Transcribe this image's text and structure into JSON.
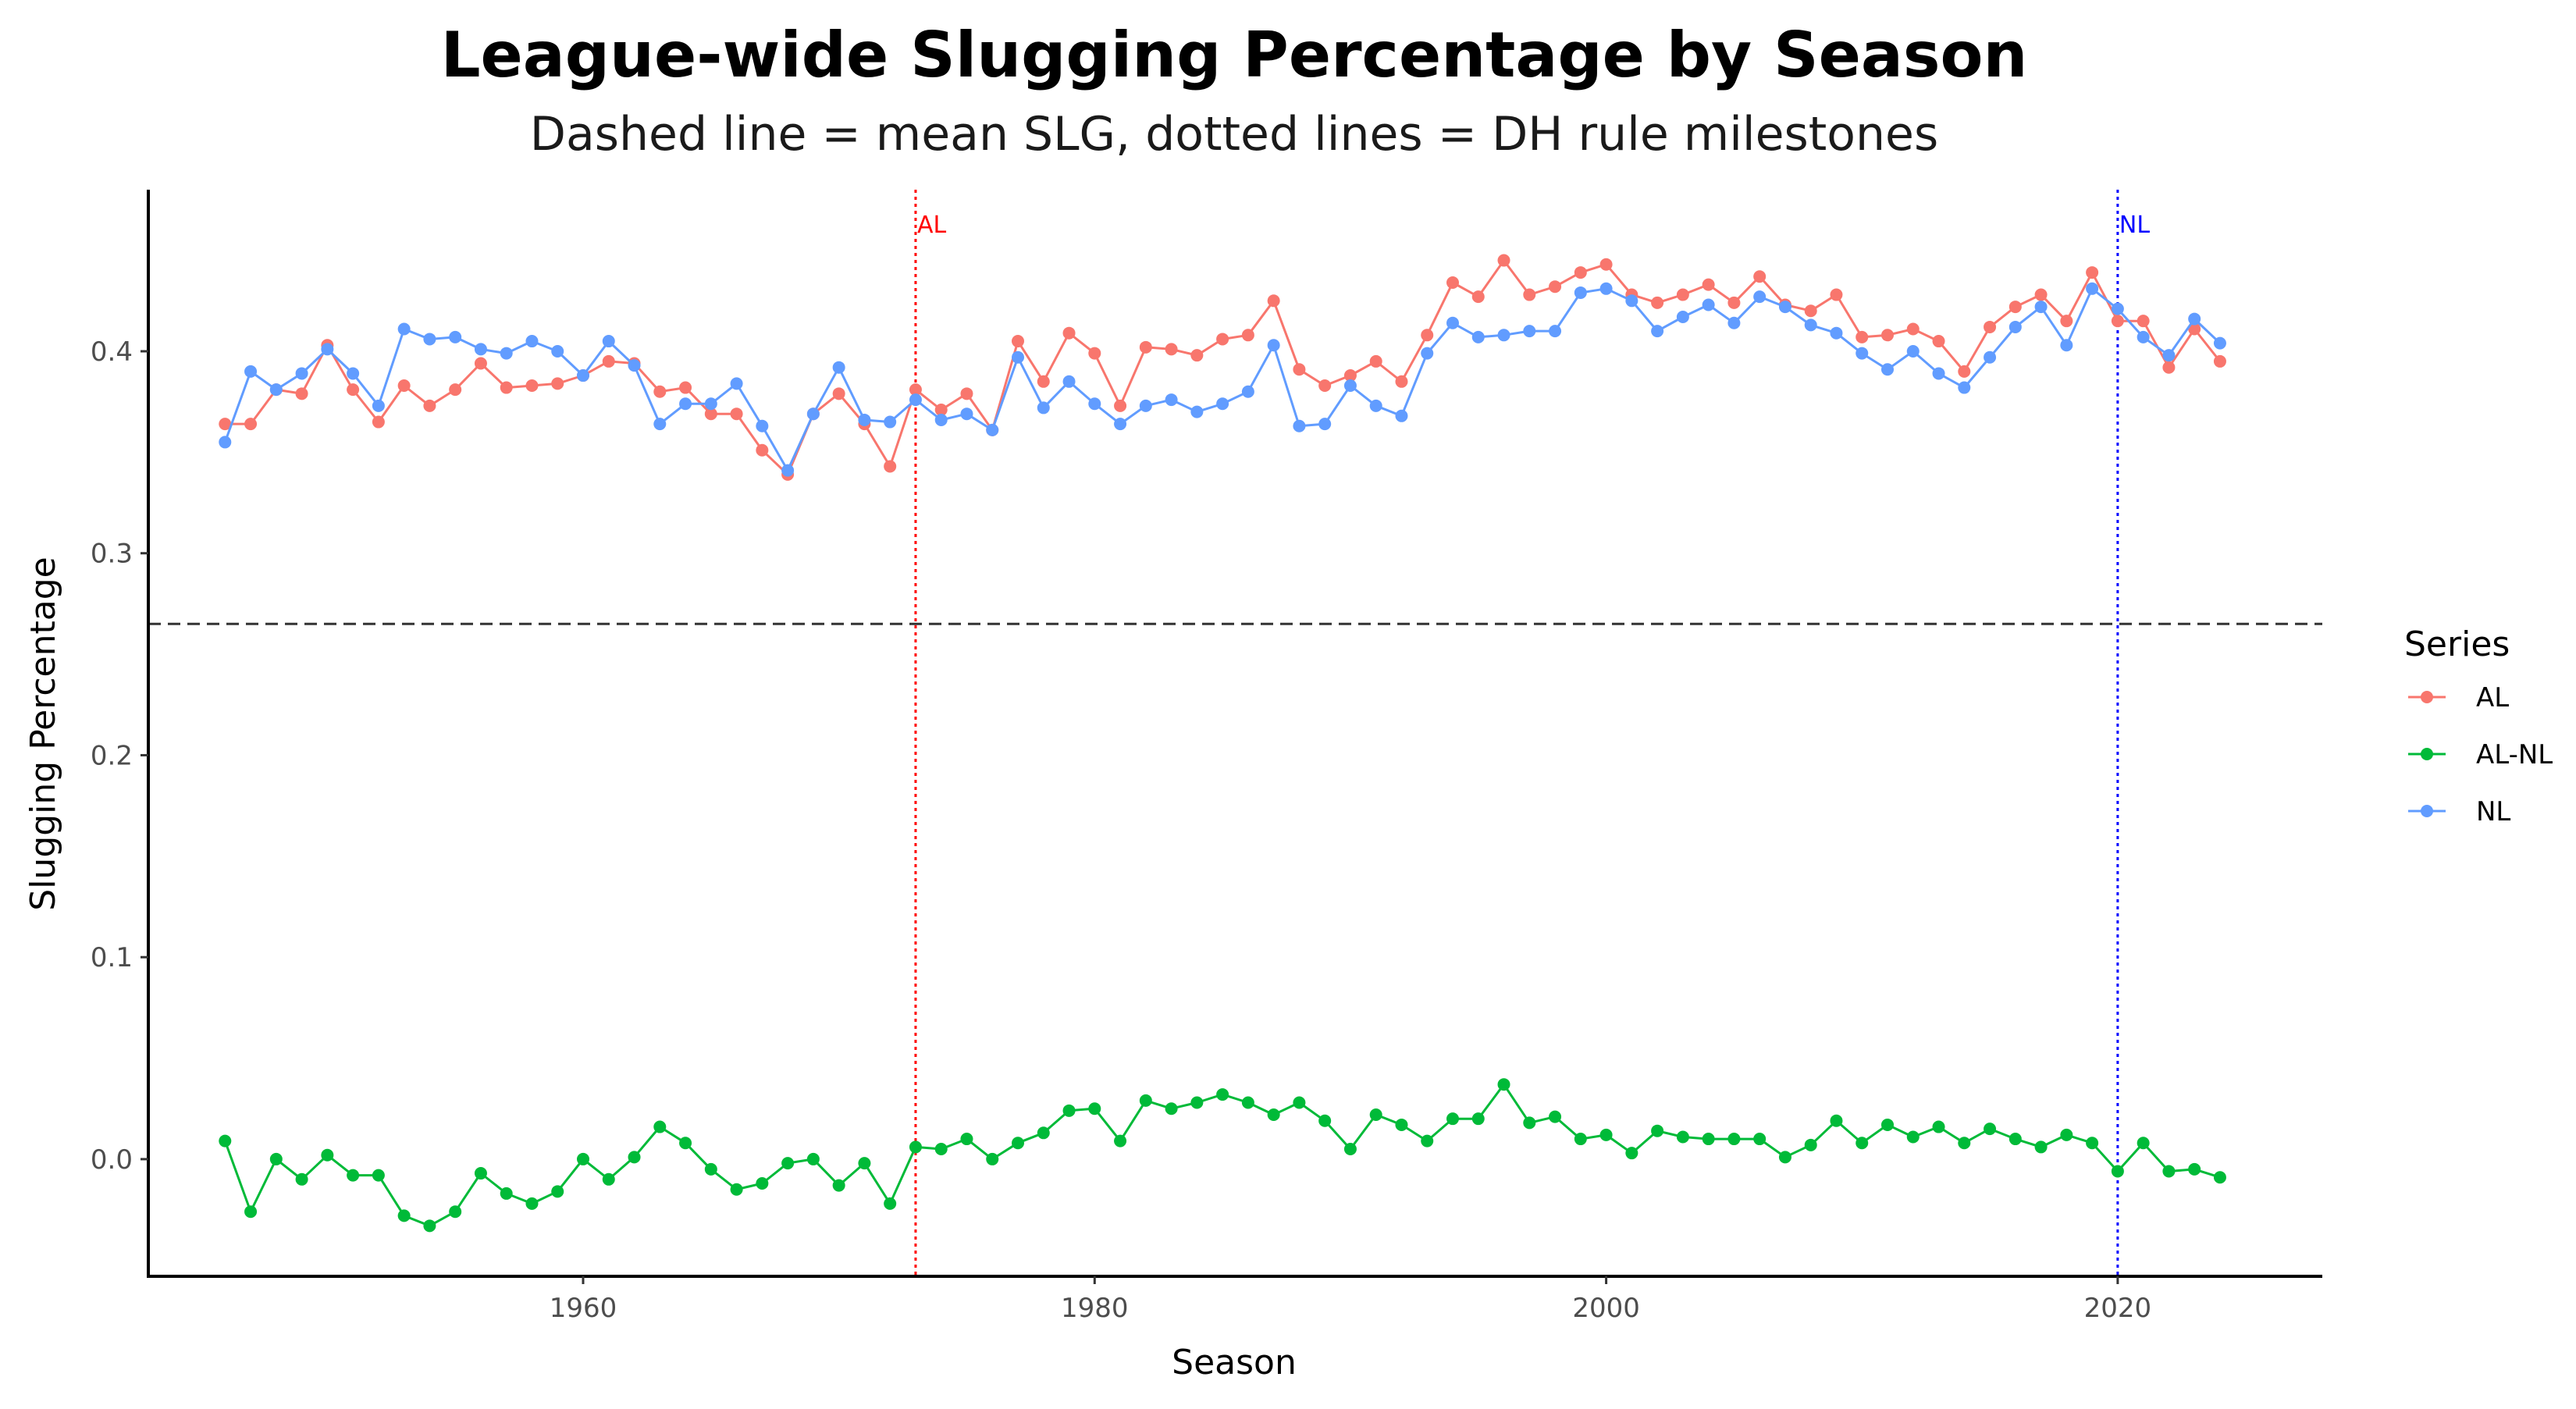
{
  "chart_data": {
    "type": "line",
    "title": "League-wide Slugging Percentage by Season",
    "subtitle": "Dashed line = mean SLG, dotted lines = DH rule milestones",
    "xlabel": "Season",
    "ylabel": "Slugging Percentage",
    "xlim": [
      1943,
      2028
    ],
    "ylim": [
      -0.058,
      0.48
    ],
    "x_ticks": [
      1960,
      1980,
      2000,
      2020
    ],
    "y_ticks": [
      0.0,
      0.1,
      0.2,
      0.3,
      0.4
    ],
    "y_tick_labels": [
      "0.0",
      "0.1",
      "0.2",
      "0.3",
      "0.4"
    ],
    "grid": false,
    "legend": {
      "title": "Series",
      "position": "right"
    },
    "mean_line": {
      "value": 0.265,
      "style": "dashed",
      "color": "#333333"
    },
    "milestones": [
      {
        "x": 1973,
        "label": "AL",
        "color": "#ff0000"
      },
      {
        "x": 2020,
        "label": "NL",
        "color": "#0000ff"
      }
    ],
    "x": [
      1946,
      1947,
      1948,
      1949,
      1950,
      1951,
      1952,
      1953,
      1954,
      1955,
      1956,
      1957,
      1958,
      1959,
      1960,
      1961,
      1962,
      1963,
      1964,
      1965,
      1966,
      1967,
      1968,
      1969,
      1970,
      1971,
      1972,
      1973,
      1974,
      1975,
      1976,
      1977,
      1978,
      1979,
      1980,
      1981,
      1982,
      1983,
      1984,
      1985,
      1986,
      1987,
      1988,
      1989,
      1990,
      1991,
      1992,
      1993,
      1994,
      1995,
      1996,
      1997,
      1998,
      1999,
      2000,
      2001,
      2002,
      2003,
      2004,
      2005,
      2006,
      2007,
      2008,
      2009,
      2010,
      2011,
      2012,
      2013,
      2014,
      2015,
      2016,
      2017,
      2018,
      2019,
      2020,
      2021,
      2022,
      2023,
      2024
    ],
    "series": [
      {
        "name": "AL",
        "color": "#f8766d",
        "values": [
          0.364,
          0.364,
          0.381,
          0.379,
          0.403,
          0.381,
          0.365,
          0.383,
          0.373,
          0.381,
          0.394,
          0.382,
          0.383,
          0.384,
          0.388,
          0.395,
          0.394,
          0.38,
          0.382,
          0.369,
          0.369,
          0.351,
          0.339,
          0.369,
          0.379,
          0.364,
          0.343,
          0.381,
          0.371,
          0.379,
          0.361,
          0.405,
          0.385,
          0.409,
          0.399,
          0.373,
          0.402,
          0.401,
          0.398,
          0.406,
          0.408,
          0.425,
          0.391,
          0.383,
          0.388,
          0.395,
          0.385,
          0.408,
          0.434,
          0.427,
          0.445,
          0.428,
          0.432,
          0.439,
          0.443,
          0.428,
          0.424,
          0.428,
          0.433,
          0.424,
          0.437,
          0.423,
          0.42,
          0.428,
          0.407,
          0.408,
          0.411,
          0.405,
          0.39,
          0.412,
          0.422,
          0.428,
          0.415,
          0.439,
          0.415,
          0.415,
          0.392,
          0.411,
          0.395
        ]
      },
      {
        "name": "AL-NL",
        "color": "#00ba38",
        "values": [
          0.009,
          -0.026,
          0.0,
          -0.01,
          0.002,
          -0.008,
          -0.008,
          -0.028,
          -0.033,
          -0.026,
          -0.007,
          -0.017,
          -0.022,
          -0.016,
          0.0,
          -0.01,
          0.001,
          0.016,
          0.008,
          -0.005,
          -0.015,
          -0.012,
          -0.002,
          0.0,
          -0.013,
          -0.002,
          -0.022,
          0.006,
          0.005,
          0.01,
          0.0,
          0.008,
          0.013,
          0.024,
          0.025,
          0.009,
          0.029,
          0.025,
          0.028,
          0.032,
          0.028,
          0.022,
          0.028,
          0.019,
          0.005,
          0.022,
          0.017,
          0.009,
          0.02,
          0.02,
          0.037,
          0.018,
          0.021,
          0.01,
          0.012,
          0.003,
          0.014,
          0.011,
          0.01,
          0.01,
          0.01,
          0.001,
          0.007,
          0.019,
          0.008,
          0.017,
          0.011,
          0.016,
          0.008,
          0.015,
          0.01,
          0.006,
          0.012,
          0.008,
          -0.006,
          0.008,
          -0.006,
          -0.005,
          -0.009
        ]
      },
      {
        "name": "NL",
        "color": "#619cff",
        "values": [
          0.355,
          0.39,
          0.381,
          0.389,
          0.401,
          0.389,
          0.373,
          0.411,
          0.406,
          0.407,
          0.401,
          0.399,
          0.405,
          0.4,
          0.388,
          0.405,
          0.393,
          0.364,
          0.374,
          0.374,
          0.384,
          0.363,
          0.341,
          0.369,
          0.392,
          0.366,
          0.365,
          0.376,
          0.366,
          0.369,
          0.361,
          0.397,
          0.372,
          0.385,
          0.374,
          0.364,
          0.373,
          0.376,
          0.37,
          0.374,
          0.38,
          0.403,
          0.363,
          0.364,
          0.383,
          0.373,
          0.368,
          0.399,
          0.414,
          0.407,
          0.408,
          0.41,
          0.41,
          0.429,
          0.431,
          0.425,
          0.41,
          0.417,
          0.423,
          0.414,
          0.427,
          0.422,
          0.413,
          0.409,
          0.399,
          0.391,
          0.4,
          0.389,
          0.382,
          0.397,
          0.412,
          0.422,
          0.403,
          0.431,
          0.421,
          0.407,
          0.398,
          0.416,
          0.404
        ]
      }
    ]
  }
}
